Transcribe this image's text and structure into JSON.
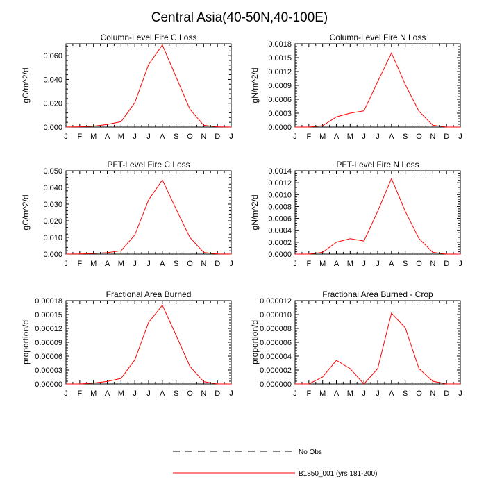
{
  "page": {
    "title": "Central Asia(40-50N,40-100E)"
  },
  "colors": {
    "model_line": "#ff0000",
    "obs_line": "#000000",
    "axis": "#000000"
  },
  "legend": {
    "items": [
      {
        "label": "No Obs",
        "style": "dashed",
        "color": "#000000"
      },
      {
        "label": "B1850_001 (yrs 181-200)",
        "style": "solid",
        "color": "#ff0000"
      }
    ]
  },
  "chart_data": [
    {
      "type": "line",
      "title": "Column-Level Fire C Loss",
      "ylabel": "gC/m^2/d",
      "xlabel": "",
      "x_tick_labels": [
        "J",
        "F",
        "M",
        "A",
        "M",
        "J",
        "J",
        "A",
        "S",
        "O",
        "N",
        "D",
        "J"
      ],
      "ylim": [
        0,
        0.07
      ],
      "y_ticks": [
        0,
        0.02,
        0.04,
        0.06
      ],
      "y_tick_labels": [
        "0.000",
        "0.020",
        "0.040",
        "0.060"
      ],
      "series": [
        {
          "name": "B1850_001 (yrs 181-200)",
          "values": [
            0.0,
            0.0002,
            0.0008,
            0.0022,
            0.0045,
            0.0205,
            0.0525,
            0.069,
            0.042,
            0.015,
            0.0015,
            0.0002,
            0.0
          ]
        }
      ]
    },
    {
      "type": "line",
      "title": "Column-Level Fire N Loss",
      "ylabel": "gN/m^2/d",
      "xlabel": "",
      "x_tick_labels": [
        "J",
        "F",
        "M",
        "A",
        "M",
        "J",
        "J",
        "A",
        "S",
        "O",
        "N",
        "D",
        "J"
      ],
      "ylim": [
        0,
        0.0018
      ],
      "y_ticks": [
        0,
        0.0003,
        0.0006,
        0.0009,
        0.0012,
        0.0015,
        0.0018
      ],
      "y_tick_labels": [
        "0.0000",
        "0.0003",
        "0.0006",
        "0.0009",
        "0.0012",
        "0.0015",
        "0.0018"
      ],
      "series": [
        {
          "name": "B1850_001 (yrs 181-200)",
          "values": [
            0.0,
            0.0,
            3e-05,
            0.00022,
            0.0003,
            0.00035,
            0.00098,
            0.0016,
            0.00092,
            0.00034,
            4e-05,
            0.0,
            0.0
          ]
        }
      ]
    },
    {
      "type": "line",
      "title": "PFT-Level Fire C Loss",
      "ylabel": "gC/m^2/d",
      "xlabel": "",
      "x_tick_labels": [
        "J",
        "F",
        "M",
        "A",
        "M",
        "J",
        "J",
        "A",
        "S",
        "O",
        "N",
        "D",
        "J"
      ],
      "ylim": [
        0,
        0.05
      ],
      "y_ticks": [
        0,
        0.01,
        0.02,
        0.03,
        0.04,
        0.05
      ],
      "y_tick_labels": [
        "0.000",
        "0.010",
        "0.020",
        "0.030",
        "0.040",
        "0.050"
      ],
      "series": [
        {
          "name": "B1850_001 (yrs 181-200)",
          "values": [
            0.0,
            0.0001,
            0.0004,
            0.0009,
            0.002,
            0.0115,
            0.0325,
            0.0445,
            0.027,
            0.01,
            0.001,
            0.0001,
            0.0
          ]
        }
      ]
    },
    {
      "type": "line",
      "title": "PFT-Level Fire N Loss",
      "ylabel": "gN/m^2/d",
      "xlabel": "",
      "x_tick_labels": [
        "J",
        "F",
        "M",
        "A",
        "M",
        "J",
        "J",
        "A",
        "S",
        "O",
        "N",
        "D",
        "J"
      ],
      "ylim": [
        0,
        0.0014
      ],
      "y_ticks": [
        0,
        0.0002,
        0.0004,
        0.0006,
        0.0008,
        0.001,
        0.0012,
        0.0014
      ],
      "y_tick_labels": [
        "0.0000",
        "0.0002",
        "0.0004",
        "0.0006",
        "0.0008",
        "0.0010",
        "0.0012",
        "0.0014"
      ],
      "series": [
        {
          "name": "B1850_001 (yrs 181-200)",
          "values": [
            0.0,
            0.0,
            3e-05,
            0.0002,
            0.00026,
            0.00022,
            0.00072,
            0.00127,
            0.00072,
            0.00026,
            3e-05,
            0.0,
            0.0
          ]
        }
      ]
    },
    {
      "type": "line",
      "title": "Fractional Area Burned",
      "ylabel": "proportion/d",
      "xlabel": "",
      "x_tick_labels": [
        "J",
        "F",
        "M",
        "A",
        "M",
        "J",
        "J",
        "A",
        "S",
        "O",
        "N",
        "D",
        "J"
      ],
      "ylim": [
        0,
        0.00018
      ],
      "y_ticks": [
        0,
        3e-05,
        6e-05,
        9e-05,
        0.00012,
        0.00015,
        0.00018
      ],
      "y_tick_labels": [
        "0.00000",
        "0.00003",
        "0.00006",
        "0.00009",
        "0.00012",
        "0.00015",
        "0.00018"
      ],
      "series": [
        {
          "name": "B1850_001 (yrs 181-200)",
          "values": [
            0.0,
            0.0,
            2e-06,
            5.5e-06,
            1.2e-05,
            5.2e-05,
            0.000133,
            0.00017,
            0.000105,
            3.8e-05,
            5e-06,
            0.0,
            0.0
          ]
        }
      ]
    },
    {
      "type": "line",
      "title": "Fractional Area Burned - Crop",
      "ylabel": "proportion/d",
      "xlabel": "",
      "x_tick_labels": [
        "J",
        "F",
        "M",
        "A",
        "M",
        "J",
        "J",
        "A",
        "S",
        "O",
        "N",
        "D",
        "J"
      ],
      "ylim": [
        0,
        1.2e-05
      ],
      "y_ticks": [
        0,
        2e-06,
        4e-06,
        6e-06,
        8e-06,
        1e-05,
        1.2e-05
      ],
      "y_tick_labels": [
        "0.000000",
        "0.000002",
        "0.000004",
        "0.000006",
        "0.000008",
        "0.000010",
        "0.000012"
      ],
      "series": [
        {
          "name": "B1850_001 (yrs 181-200)",
          "values": [
            0.0,
            0.0,
            1e-06,
            3.4e-06,
            2.2e-06,
            0.0,
            2.2e-06,
            1.02e-05,
            8.1e-06,
            2.2e-06,
            4e-07,
            0.0,
            0.0
          ]
        }
      ]
    }
  ]
}
